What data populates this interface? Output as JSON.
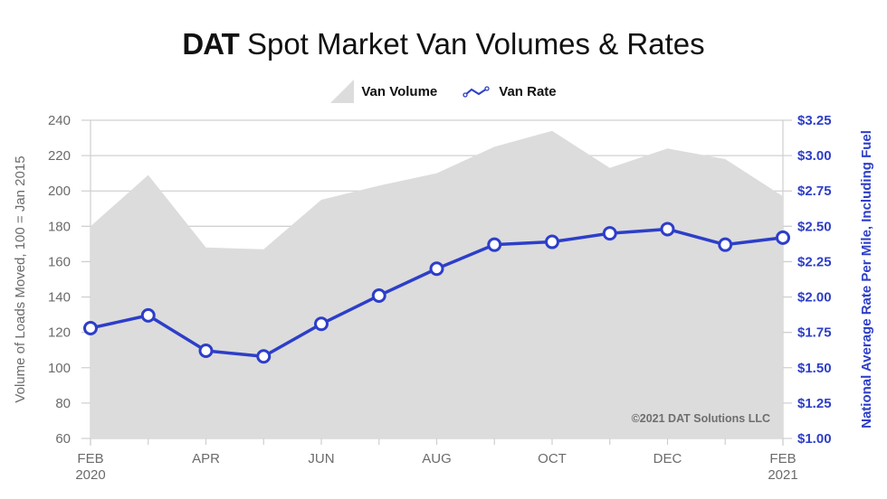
{
  "chart_data": {
    "type": "area+line",
    "title_brand": "DAT",
    "title": "Spot Market Van Volumes & Rates",
    "legend": [
      {
        "name": "Van Volume",
        "kind": "area",
        "color": "#dcdcdc"
      },
      {
        "name": "Van Rate",
        "kind": "line",
        "color": "#2d3ec9"
      }
    ],
    "legend_placement": "top-center",
    "ylabel_left": "Volume of Loads Moved, 100 = Jan 2015",
    "ylabel_right": "National Average Rate Per Mile, Including Fuel",
    "ylim_left": [
      60,
      240
    ],
    "ylim_right": [
      1.0,
      3.25
    ],
    "yticks_left": [
      "240",
      "220",
      "200",
      "180",
      "160",
      "140",
      "120",
      "100",
      "80",
      "60"
    ],
    "yticks_right": [
      "$3.25",
      "$3.00",
      "$2.75",
      "$2.50",
      "$2.25",
      "$2.00",
      "$1.75",
      "$1.50",
      "$1.25",
      "$1.00"
    ],
    "x": [
      "Feb 2020",
      "Mar 2020",
      "Apr 2020",
      "May 2020",
      "Jun 2020",
      "Jul 2020",
      "Aug 2020",
      "Sep 2020",
      "Oct 2020",
      "Nov 2020",
      "Dec 2020",
      "Jan 2021",
      "Feb 2021"
    ],
    "xtick_labels": [
      {
        "index": 0,
        "lines": [
          "FEB",
          "2020"
        ]
      },
      {
        "index": 2,
        "lines": [
          "APR"
        ]
      },
      {
        "index": 4,
        "lines": [
          "JUN"
        ]
      },
      {
        "index": 6,
        "lines": [
          "AUG"
        ]
      },
      {
        "index": 8,
        "lines": [
          "OCT"
        ]
      },
      {
        "index": 10,
        "lines": [
          "DEC"
        ]
      },
      {
        "index": 12,
        "lines": [
          "FEB",
          "2021"
        ]
      }
    ],
    "series": [
      {
        "name": "Van Volume",
        "axis": "left",
        "values": [
          180,
          209,
          168,
          167,
          195,
          203,
          210,
          225,
          234,
          213,
          224,
          218,
          197
        ]
      },
      {
        "name": "Van Rate",
        "axis": "right",
        "values": [
          1.78,
          1.87,
          1.62,
          1.58,
          1.81,
          2.01,
          2.2,
          2.37,
          2.39,
          2.45,
          2.48,
          2.37,
          2.42
        ]
      }
    ],
    "grid": true,
    "annotation": "©2021 DAT Solutions LLC"
  }
}
